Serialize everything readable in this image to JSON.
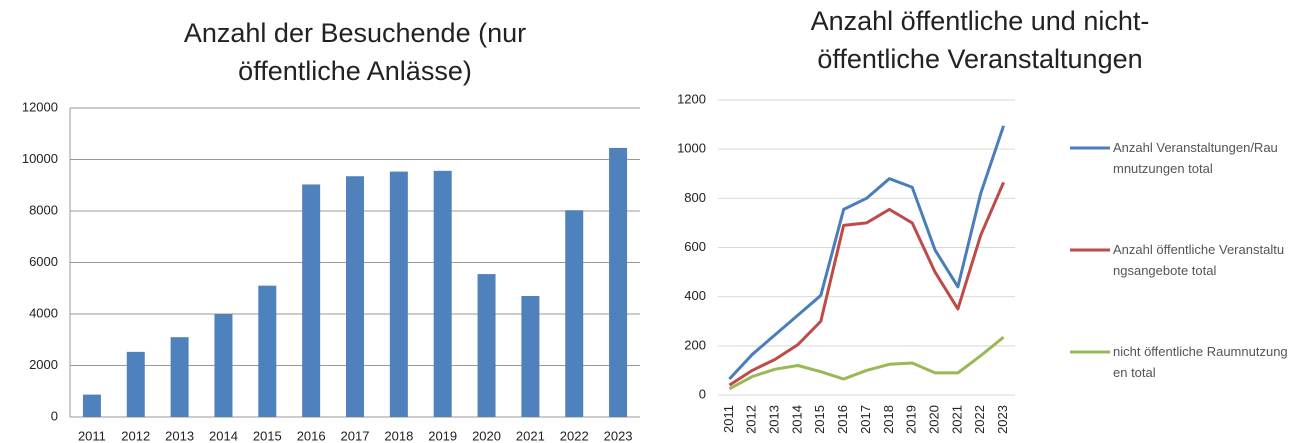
{
  "chart_data": [
    {
      "type": "bar",
      "title": "Anzahl der Besuchende (nur öffentliche Anlässe)",
      "categories": [
        "2011",
        "2012",
        "2013",
        "2014",
        "2015",
        "2016",
        "2017",
        "2018",
        "2019",
        "2020",
        "2021",
        "2022",
        "2023"
      ],
      "values": [
        870,
        2530,
        3100,
        4000,
        5100,
        9030,
        9350,
        9530,
        9560,
        5550,
        4700,
        8030,
        10450
      ],
      "color": "#4f81bd",
      "ylim": [
        0,
        12000
      ],
      "yticks": [
        0,
        2000,
        4000,
        6000,
        8000,
        10000,
        12000
      ],
      "grid": true
    },
    {
      "type": "line",
      "title": "Anzahl öffentliche und nicht-öffentliche Veranstaltungen",
      "categories": [
        "2011",
        "2012",
        "2013",
        "2014",
        "2015",
        "2016",
        "2017",
        "2018",
        "2019",
        "2020",
        "2021",
        "2022",
        "2023"
      ],
      "series": [
        {
          "name": "Anzahl Veranstaltungen/Raumnutzungen total",
          "color": "#4a7ebb",
          "values": [
            65,
            165,
            245,
            325,
            405,
            755,
            800,
            880,
            845,
            590,
            440,
            820,
            1095
          ]
        },
        {
          "name": "Anzahl öffentliche Veranstaltungsangebote total",
          "color": "#be4b48",
          "values": [
            40,
            100,
            145,
            205,
            300,
            690,
            700,
            755,
            700,
            500,
            350,
            650,
            865
          ]
        },
        {
          "name": "nicht öffentliche Raumnutzungen total",
          "color": "#98b954",
          "values": [
            25,
            75,
            105,
            120,
            95,
            65,
            100,
            125,
            130,
            90,
            90,
            160,
            235
          ]
        }
      ],
      "ylim": [
        0,
        1200
      ],
      "yticks": [
        0,
        200,
        400,
        600,
        800,
        1000,
        1200
      ],
      "grid": true,
      "legend": "right"
    }
  ]
}
